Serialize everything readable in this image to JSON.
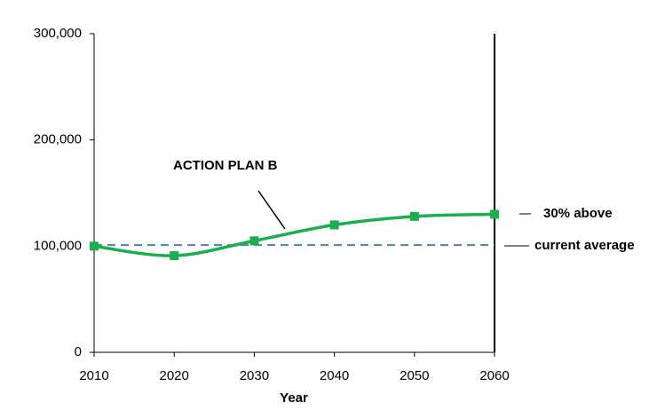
{
  "chart_data": {
    "type": "line",
    "x_label": "Year",
    "x": [
      2010,
      2020,
      2030,
      2040,
      2050,
      2060
    ],
    "series": [
      {
        "name": "ACTION PLAN B",
        "color": "#1aae4f",
        "values": [
          100000,
          91000,
          105000,
          120000,
          128000,
          130000
        ]
      }
    ],
    "xlim": [
      2010,
      2060
    ],
    "xticks": [
      2010,
      2020,
      2030,
      2040,
      2050,
      2060
    ],
    "ylim": [
      0,
      300000
    ],
    "yticks": [
      0,
      {
        "value": 100000,
        "label": "100,000"
      },
      {
        "value": 200000,
        "label": "200,000"
      },
      {
        "value": 300000,
        "label": "300,000"
      }
    ],
    "reference_line": {
      "value": 101000,
      "color": "#4a7fbf"
    },
    "annotations": [
      "30% above",
      "current average"
    ]
  }
}
